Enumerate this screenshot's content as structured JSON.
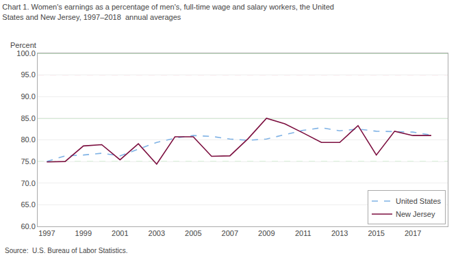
{
  "chart_data": {
    "type": "line",
    "title": "Chart 1. Women's earnings as a percentage of men's, full-time wage and salary workers, the United",
    "subtitle": "States and New Jersey, 1997–2018  annual averages",
    "ylabel": "Percent",
    "annotations": [
      "Source:  U.S. Bureau of Labor Statistics."
    ],
    "x": [
      1997,
      1998,
      1999,
      2000,
      2001,
      2002,
      2003,
      2004,
      2005,
      2006,
      2007,
      2008,
      2009,
      2010,
      2011,
      2012,
      2013,
      2014,
      2015,
      2016,
      2017,
      2018
    ],
    "series": [
      {
        "name": "United States",
        "color": "#7FB2E5",
        "line_style": "dashed",
        "values": [
          75.0,
          76.3,
          76.5,
          76.9,
          76.3,
          77.9,
          79.4,
          80.4,
          81.0,
          80.8,
          80.2,
          79.9,
          80.2,
          81.2,
          82.2,
          82.8,
          82.1,
          82.5,
          82.0,
          81.9,
          81.8,
          81.1
        ]
      },
      {
        "name": "New Jersey",
        "color": "#7B0D3E",
        "line_style": "solid",
        "values": [
          74.9,
          75.0,
          78.6,
          78.9,
          75.4,
          79.1,
          74.4,
          80.7,
          80.7,
          76.2,
          76.3,
          80.3,
          85.0,
          83.7,
          81.6,
          79.4,
          79.4,
          83.3,
          76.5,
          82.0,
          81.0,
          81.0
        ]
      }
    ],
    "reference_lines": [
      {
        "y": 100.0,
        "color": "#90C990",
        "line_style": "solid"
      },
      {
        "y": 95.0,
        "color": "#F5A0B0",
        "line_style": "dashed"
      },
      {
        "y": 85.0,
        "color": "#90C990",
        "line_style": "solid"
      },
      {
        "y": 75.0,
        "color": "#A8E8A8",
        "line_style": "dashed"
      }
    ],
    "xlim": [
      1996.5,
      2018.9
    ],
    "xticks": [
      1997,
      1999,
      2001,
      2003,
      2005,
      2007,
      2009,
      2011,
      2013,
      2015,
      2017
    ],
    "ylim": [
      60.0,
      100.0
    ],
    "yticks": [
      {
        "value": 60,
        "label": "60.0"
      },
      {
        "value": 65,
        "label": "65.0"
      },
      {
        "value": 70,
        "label": "70.0"
      },
      {
        "value": 75,
        "label": "75.0"
      },
      {
        "value": 80,
        "label": "80.0"
      },
      {
        "value": 85,
        "label": "85.0"
      },
      {
        "value": 90,
        "label": "90.0"
      },
      {
        "value": 95,
        "label": "95.0"
      },
      {
        "value": 100,
        "label": "100.0"
      }
    ],
    "grid": "y",
    "legend": "lower right"
  }
}
